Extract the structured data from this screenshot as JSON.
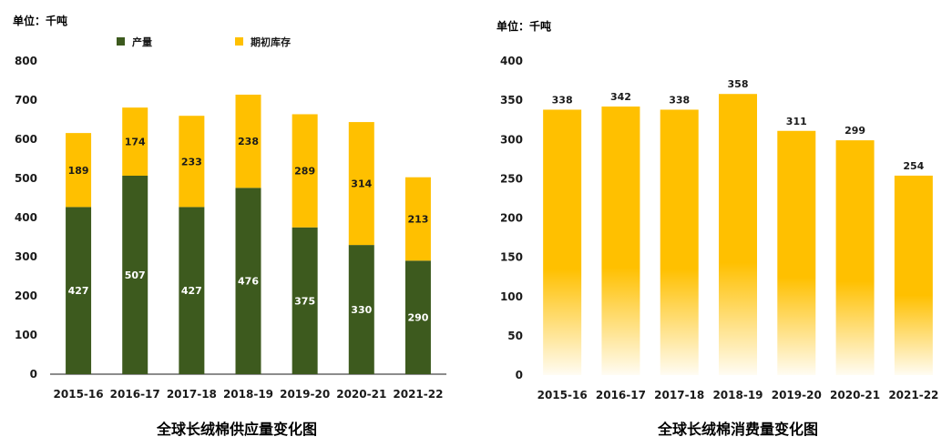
{
  "colors": {
    "production": "#3d5a1e",
    "stock": "#ffc000",
    "consumption": "#ffc000",
    "axis": "#1a1a1a",
    "text": "#1a1a1a"
  },
  "chart_data": [
    {
      "type": "bar",
      "stacked": true,
      "unit_label": "单位：千吨",
      "title": "全球长绒棉供应量变化图",
      "categories": [
        "2015-16",
        "2016-17",
        "2017-18",
        "2018-19",
        "2019-20",
        "2020-21",
        "2021-22"
      ],
      "series": [
        {
          "name": "产量",
          "color": "#3d5a1e",
          "values": [
            427,
            507,
            427,
            476,
            375,
            330,
            290
          ]
        },
        {
          "name": "期初库存",
          "color": "#ffc000",
          "values": [
            189,
            174,
            233,
            238,
            289,
            314,
            213
          ]
        }
      ],
      "ylim": [
        0,
        800
      ],
      "yticks": [
        0,
        100,
        200,
        300,
        400,
        500,
        600,
        700,
        800
      ],
      "legend": "top",
      "grid": false
    },
    {
      "type": "bar",
      "unit_label": "单位：千吨",
      "title": "全球长绒棉消费量变化图",
      "categories": [
        "2015-16",
        "2016-17",
        "2017-18",
        "2018-19",
        "2019-20",
        "2020-21",
        "2021-22"
      ],
      "values": [
        338,
        342,
        338,
        358,
        311,
        299,
        254
      ],
      "ylim": [
        0,
        400
      ],
      "yticks": [
        0,
        50,
        100,
        150,
        200,
        250,
        300,
        350,
        400
      ],
      "gradient_fill": true,
      "grid": false
    }
  ]
}
